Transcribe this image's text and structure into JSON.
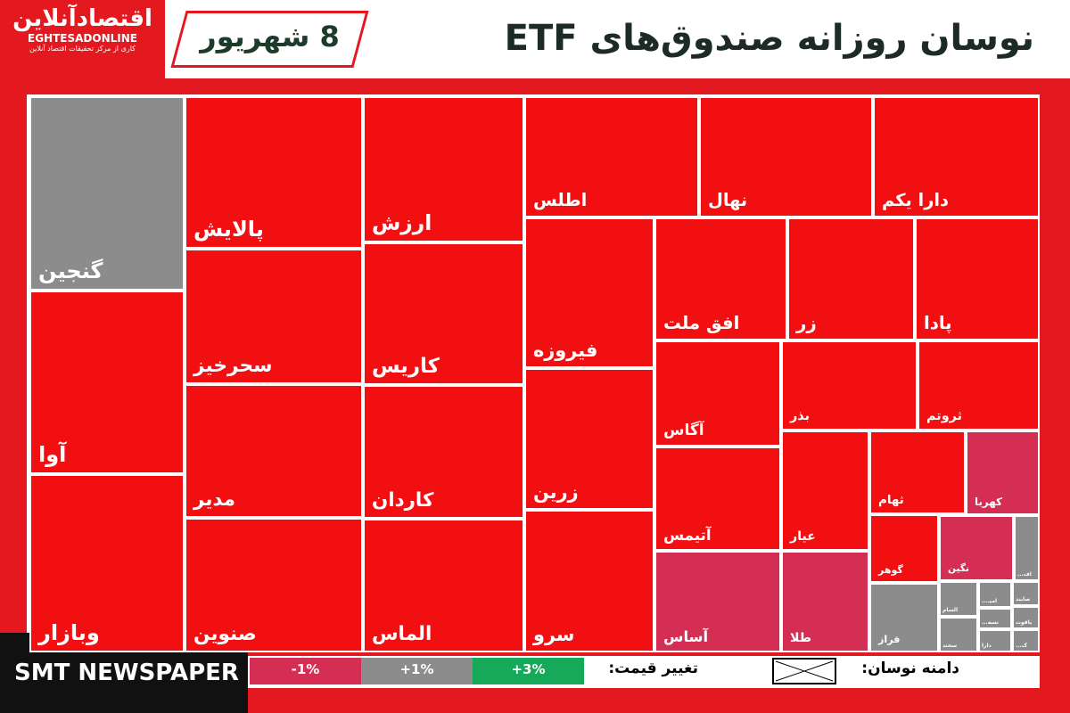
{
  "header": {
    "logo": "اقتصادآنلاین",
    "logo_latin": "EGHTESADONLINE",
    "logo_sub": "کاری از مرکز تحقیقات اقتصاد آنلاین",
    "date": "8 شهریور",
    "title": "نوسان روزانه صندوق‌های ETF"
  },
  "cells": [
    {
      "label": "گنجین",
      "color": "#8c8c8c"
    },
    {
      "label": "آوا",
      "color": "#f20f12"
    },
    {
      "label": "وبازار",
      "color": "#f20f12"
    },
    {
      "label": "پالایش",
      "color": "#f20f12"
    },
    {
      "label": "سحرخیز",
      "color": "#f20f12"
    },
    {
      "label": "مدیر",
      "color": "#f20f12"
    },
    {
      "label": "صنوین",
      "color": "#f20f12"
    },
    {
      "label": "ارزش",
      "color": "#f20f12"
    },
    {
      "label": "کاریس",
      "color": "#f20f12"
    },
    {
      "label": "کاردان",
      "color": "#f20f12"
    },
    {
      "label": "الماس",
      "color": "#f20f12"
    },
    {
      "label": "اطلس",
      "color": "#f20f12"
    },
    {
      "label": "نهال",
      "color": "#f20f12"
    },
    {
      "label": "دارا یکم",
      "color": "#f20f12"
    },
    {
      "label": "فیروزه",
      "color": "#f20f12"
    },
    {
      "label": "زرین",
      "color": "#f20f12"
    },
    {
      "label": "سرو",
      "color": "#f20f12"
    },
    {
      "label": "افق ملت",
      "color": "#f20f12"
    },
    {
      "label": "زر",
      "color": "#f20f12"
    },
    {
      "label": "پادا",
      "color": "#f20f12"
    },
    {
      "label": "آگاس",
      "color": "#f20f12"
    },
    {
      "label": "بذر",
      "color": "#f20f12"
    },
    {
      "label": "ثروتم",
      "color": "#f20f12"
    },
    {
      "label": "آتیمس",
      "color": "#f20f12"
    },
    {
      "label": "آساس",
      "color": "#d42e55"
    },
    {
      "label": "عیار",
      "color": "#f20f12"
    },
    {
      "label": "طلا",
      "color": "#d42e55"
    },
    {
      "label": "ثهام",
      "color": "#f20f12"
    },
    {
      "label": "کهربا",
      "color": "#d42e55"
    },
    {
      "label": "گوهر",
      "color": "#f20f12"
    },
    {
      "label": "نگین",
      "color": "#d42e55"
    },
    {
      "label": "اف...",
      "color": "#8c8c8c"
    },
    {
      "label": "فراز",
      "color": "#8c8c8c"
    },
    {
      "label": "السام",
      "color": "#8c8c8c"
    },
    {
      "label": "سخند",
      "color": "#8c8c8c"
    },
    {
      "label": "امیـ...",
      "color": "#8c8c8c"
    },
    {
      "label": "تسه...",
      "color": "#8c8c8c"
    },
    {
      "label": "دارا",
      "color": "#8c8c8c"
    },
    {
      "label": "صایند",
      "color": "#8c8c8c"
    },
    {
      "label": "یاقوت",
      "color": "#8c8c8c"
    },
    {
      "label": "ک...",
      "color": "#8c8c8c"
    }
  ],
  "legend": {
    "price_label": "تغییر قیمت:",
    "range_label": "دامنه نوسان:",
    "steps": [
      {
        "label": "-1%",
        "color": "#d42e55"
      },
      {
        "label": "+1%",
        "color": "#8c8c8c"
      },
      {
        "label": "+3%",
        "color": "#16a95a"
      }
    ]
  },
  "footer": "SMT NEWSPAPER"
}
